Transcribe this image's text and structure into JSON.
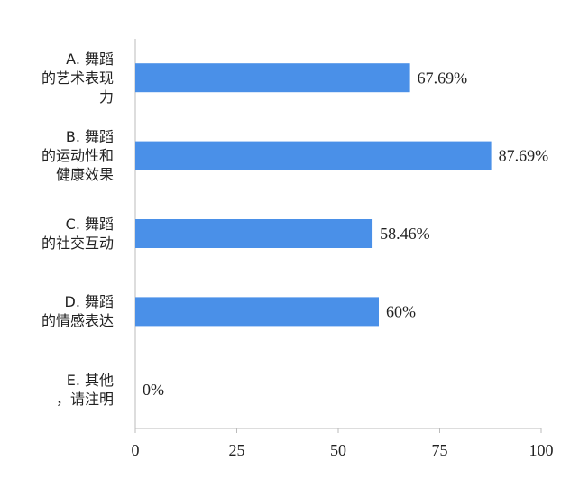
{
  "chart_data": {
    "type": "bar",
    "orientation": "horizontal",
    "categories": [
      "A. 舞蹈\n的艺术表现\n力",
      "B. 舞蹈\n的运动性和\n健康效果",
      "C. 舞蹈\n的社交互动",
      "D. 舞蹈\n的情感表达",
      "E. 其他\n，请注明"
    ],
    "values": [
      67.69,
      87.69,
      58.46,
      60,
      0
    ],
    "value_labels": [
      "67.69%",
      "87.69%",
      "58.46%",
      "60%",
      "0%"
    ],
    "color": "#4a90e8",
    "xlim": [
      0,
      100
    ],
    "xticks": [
      0,
      25,
      50,
      75,
      100
    ]
  }
}
